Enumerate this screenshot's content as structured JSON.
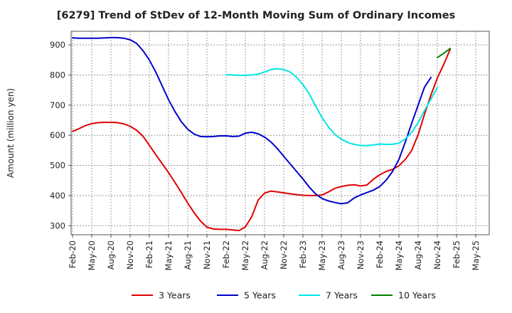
{
  "chart_data": {
    "type": "line",
    "title": "[6279]  Trend of StDev of 12-Month Moving Sum of Ordinary Incomes",
    "ylabel": "Amount (million yen)",
    "xlabel": "",
    "ylim": [
      270,
      945
    ],
    "yticks": [
      300,
      400,
      500,
      600,
      700,
      800,
      900
    ],
    "grid": true,
    "legend_position": "bottom",
    "x_tick_labels": [
      "Feb-20",
      "May-20",
      "Aug-20",
      "Nov-20",
      "Feb-21",
      "May-21",
      "Aug-21",
      "Nov-21",
      "Feb-22",
      "May-22",
      "Aug-22",
      "Nov-22",
      "Feb-23",
      "May-23",
      "Aug-23",
      "Nov-23",
      "Feb-24",
      "May-24",
      "Aug-24",
      "Nov-24",
      "Feb-25",
      "May-25"
    ],
    "series": [
      {
        "name": "3 Years",
        "color": "#e00000",
        "start": "2020-02",
        "values": [
          613,
          622,
          632,
          639,
          642,
          643,
          643,
          642,
          638,
          630,
          617,
          597,
          567,
          536,
          506,
          476,
          444,
          410,
          375,
          343,
          315,
          295,
          289,
          288,
          288,
          286,
          284,
          296,
          330,
          385,
          408,
          415,
          412,
          409,
          406,
          403,
          401,
          400,
          400,
          402,
          412,
          424,
          430,
          434,
          436,
          432,
          435,
          454,
          469,
          480,
          487,
          499,
          520,
          550,
          602,
          670,
          733,
          790,
          835,
          885
        ]
      },
      {
        "name": "5 Years",
        "color": "#0000cc",
        "start": "2020-02",
        "values": [
          923,
          922,
          922,
          922,
          922,
          923,
          924,
          924,
          922,
          917,
          905,
          881,
          850,
          810,
          764,
          718,
          679,
          645,
          620,
          604,
          596,
          595,
          596,
          598,
          598,
          596,
          597,
          607,
          610,
          605,
          594,
          578,
          556,
          530,
          505,
          480,
          455,
          428,
          405,
          390,
          382,
          377,
          373,
          376,
          392,
          402,
          410,
          418,
          430,
          451,
          480,
          520,
          578,
          640,
          700,
          760,
          792
        ]
      },
      {
        "name": "7 Years",
        "color": "#00e5e5",
        "start": "2022-02",
        "values": [
          801,
          800,
          799,
          799,
          800,
          803,
          810,
          818,
          821,
          818,
          810,
          793,
          768,
          737,
          697,
          658,
          627,
          603,
          587,
          576,
          570,
          566,
          566,
          568,
          571,
          570,
          570,
          574,
          588,
          610,
          642,
          682,
          720,
          758
        ]
      },
      {
        "name": "10 Years",
        "color": "#008000",
        "start": "2024-11",
        "values": [
          858,
          872,
          888
        ]
      }
    ]
  }
}
